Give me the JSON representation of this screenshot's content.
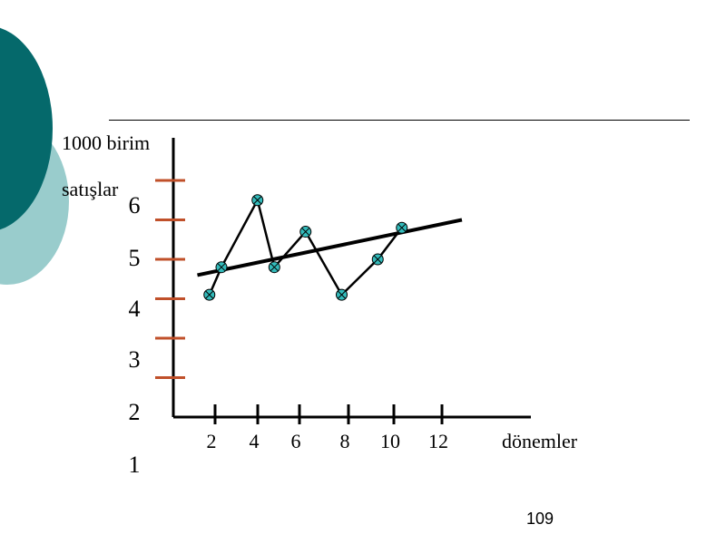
{
  "page": {
    "number": "109",
    "decor_colors": {
      "dark": "#05696b",
      "light": "#99cccc"
    }
  },
  "chart_data": {
    "type": "line",
    "unit_label": "1000 birim",
    "ylabel": "satışlar",
    "xlabel": "dönemler",
    "x_tick_labels": [
      "2",
      "4",
      "6",
      "8",
      "10",
      "12"
    ],
    "y_tick_labels": [
      "6",
      "5",
      "4",
      "3",
      "2",
      "1"
    ],
    "series": [
      {
        "x": [
          1.5,
          2,
          3.5,
          4.2,
          5.5,
          7,
          8.5,
          9.5
        ],
        "y": [
          3.1,
          3.8,
          5.5,
          3.8,
          4.7,
          3.1,
          4.0,
          4.8
        ],
        "color": "#000000",
        "marker_color": "#33bbbb"
      }
    ],
    "trendline": {
      "x": [
        1,
        12
      ],
      "y": [
        3.6,
        5.0
      ],
      "color": "#000000"
    },
    "tick_color": "#c0502a",
    "xlim": [
      0,
      15
    ],
    "ylim": [
      0,
      7
    ],
    "grid": false
  }
}
